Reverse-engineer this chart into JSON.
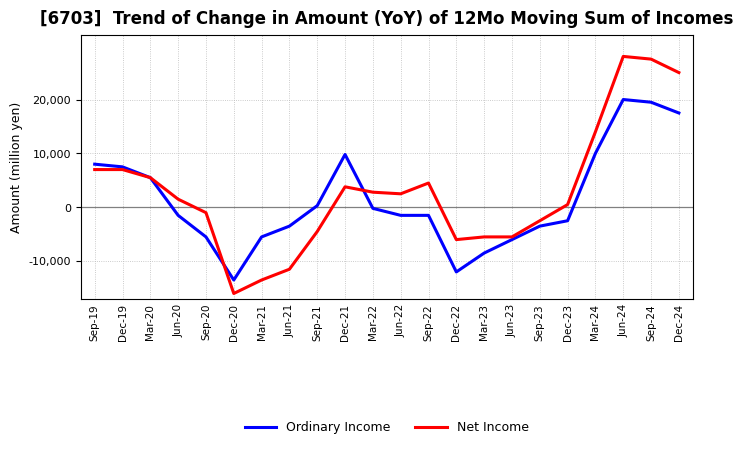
{
  "title": "[6703]  Trend of Change in Amount (YoY) of 12Mo Moving Sum of Incomes",
  "ylabel": "Amount (million yen)",
  "x_labels": [
    "Sep-19",
    "Dec-19",
    "Mar-20",
    "Jun-20",
    "Sep-20",
    "Dec-20",
    "Mar-21",
    "Jun-21",
    "Sep-21",
    "Dec-21",
    "Mar-22",
    "Jun-22",
    "Sep-22",
    "Dec-22",
    "Mar-23",
    "Jun-23",
    "Sep-23",
    "Dec-23",
    "Mar-24",
    "Jun-24",
    "Sep-24",
    "Dec-24"
  ],
  "ordinary_income": [
    8000,
    7500,
    5500,
    -1500,
    -5500,
    -13500,
    -5500,
    -3500,
    300,
    9800,
    -200,
    -1500,
    -1500,
    -12000,
    -8500,
    -6000,
    -3500,
    -2500,
    10000,
    20000,
    19500,
    17500
  ],
  "net_income": [
    7000,
    7000,
    5500,
    1500,
    -1000,
    -16000,
    -13500,
    -11500,
    -4500,
    3800,
    2800,
    2500,
    4500,
    -6000,
    -5500,
    -5500,
    -2500,
    500,
    14000,
    28000,
    27500,
    25000
  ],
  "ordinary_color": "#0000FF",
  "net_color": "#FF0000",
  "background_color": "#FFFFFF",
  "grid_color": "#AAAAAA",
  "ylim": [
    -17000,
    32000
  ],
  "yticks": [
    -10000,
    0,
    10000,
    20000
  ],
  "line_width": 2.2,
  "title_fontsize": 12,
  "legend_labels": [
    "Ordinary Income",
    "Net Income"
  ]
}
